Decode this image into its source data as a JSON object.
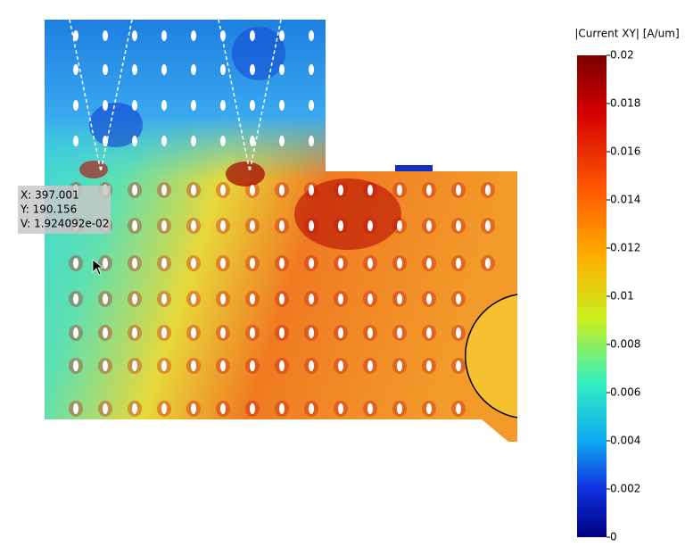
{
  "colorbar": {
    "title": "|Current XY| [A/um]",
    "ticks": [
      0.02,
      0.018,
      0.016,
      0.014,
      0.012,
      0.01,
      0.008,
      0.006,
      0.004,
      0.002,
      0
    ]
  },
  "probe": {
    "x": "X: 397.001",
    "y": "Y: 190.156",
    "v": "V: 1.924092e-02"
  }
}
